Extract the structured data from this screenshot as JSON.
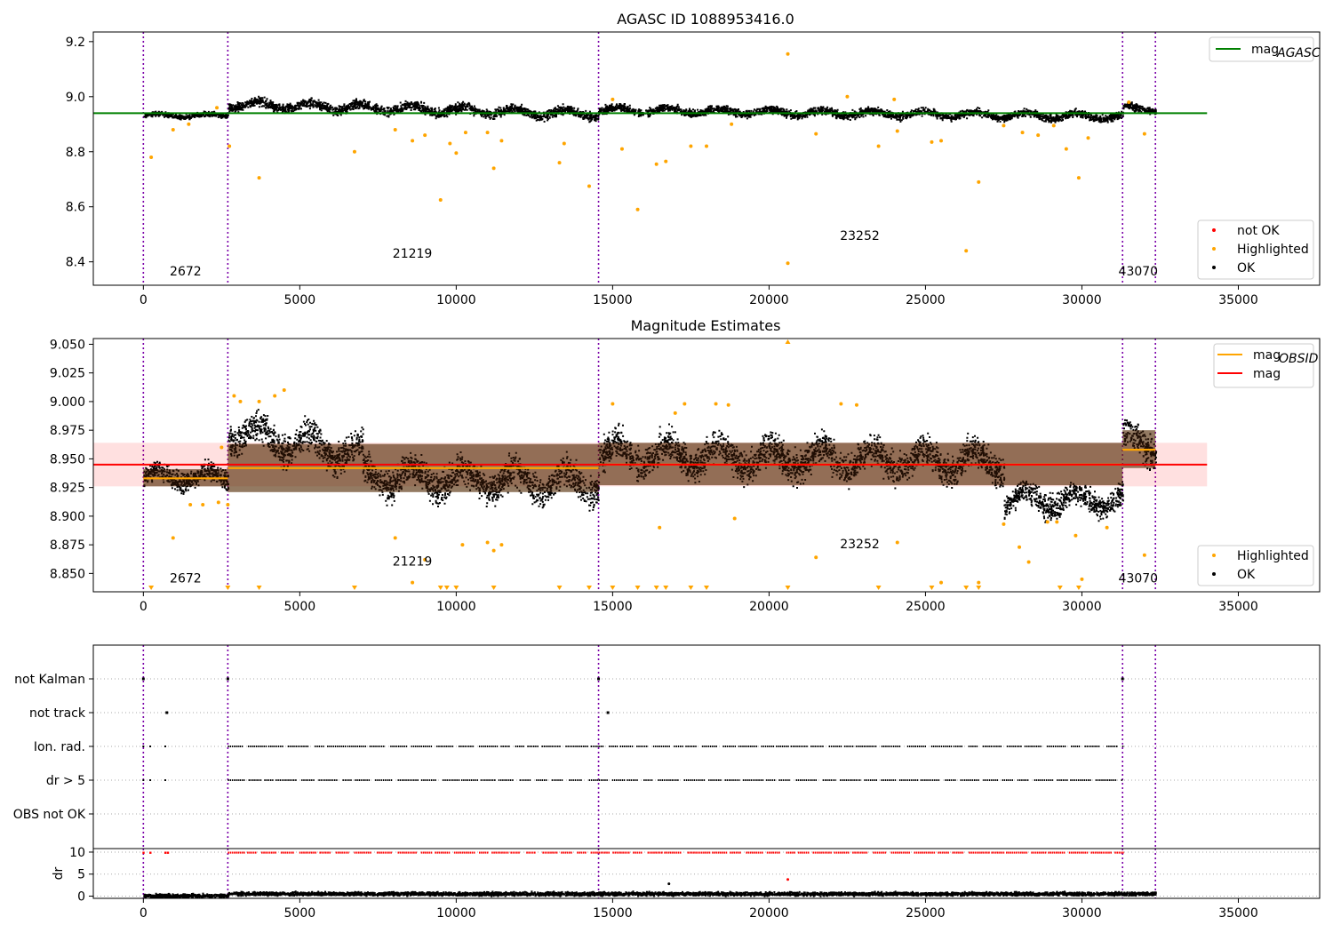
{
  "chart_data": [
    {
      "type": "scatter",
      "title": "AGASC ID 1088953416.0",
      "xlabel": "",
      "ylabel": "",
      "xlim": [
        -1600,
        37600
      ],
      "ylim": [
        8.315,
        9.235
      ],
      "x_ticks": [
        0,
        5000,
        10000,
        15000,
        20000,
        25000,
        30000,
        35000
      ],
      "x_tick_labels": [
        "0",
        "5000",
        "10000",
        "15000",
        "20000",
        "25000",
        "30000",
        "35000"
      ],
      "y_ticks": [
        8.4,
        8.6,
        8.8,
        9.0,
        9.2
      ],
      "y_tick_labels": [
        "8.4",
        "8.6",
        "8.8",
        "9.0",
        "9.2"
      ],
      "obsid_boundaries": [
        0,
        2700,
        14550,
        31300,
        32350
      ],
      "obsid_labels": [
        {
          "x": 1350,
          "y": 8.35,
          "text": "2672"
        },
        {
          "x": 8600,
          "y": 8.415,
          "text": "21219"
        },
        {
          "x": 22900,
          "y": 8.48,
          "text": "23252"
        },
        {
          "x": 31800,
          "y": 8.35,
          "text": "43070"
        }
      ],
      "lines": [
        {
          "name": "mag_AGASC",
          "color": "#008000",
          "x": [
            -1600,
            34000
          ],
          "y": [
            8.94,
            8.94
          ]
        }
      ],
      "series_bands": [
        {
          "name": "OK",
          "color": "#000000",
          "segments": [
            {
              "x0": 0,
              "x1": 2700,
              "center": 8.935,
              "spread": 0.012
            },
            {
              "x0": 2700,
              "x1": 14550,
              "center_start": 8.975,
              "center_end": 8.94,
              "spread": 0.025
            },
            {
              "x0": 14550,
              "x1": 31300,
              "center_start": 8.955,
              "center_end": 8.93,
              "spread": 0.02
            },
            {
              "x0": 31300,
              "x1": 32350,
              "center": 8.96,
              "spread": 0.02
            }
          ]
        }
      ],
      "highlighted_points": {
        "name": "Highlighted",
        "color": "#ffa500",
        "x": [
          250,
          950,
          1450,
          2350,
          2750,
          3700,
          6750,
          8050,
          8600,
          9000,
          9500,
          9800,
          10000,
          10300,
          11000,
          11200,
          11450,
          13300,
          13450,
          14250,
          15000,
          15300,
          15800,
          16400,
          16700,
          17500,
          18000,
          18800,
          20600,
          20600,
          21500,
          22500,
          23500,
          24100,
          25200,
          25500,
          26300,
          26700,
          27500,
          28100,
          28600,
          29100,
          29500,
          29900,
          30200,
          31500,
          32000,
          24000
        ],
        "y": [
          8.78,
          8.88,
          8.9,
          8.96,
          8.82,
          8.705,
          8.8,
          8.88,
          8.84,
          8.86,
          8.625,
          8.83,
          8.795,
          8.87,
          8.87,
          8.74,
          8.84,
          8.76,
          8.83,
          8.675,
          8.99,
          8.81,
          8.59,
          8.755,
          8.765,
          8.82,
          8.82,
          8.9,
          9.155,
          8.395,
          8.865,
          9.0,
          8.82,
          8.875,
          8.835,
          8.84,
          8.44,
          8.69,
          8.895,
          8.87,
          8.86,
          8.895,
          8.81,
          8.705,
          8.85,
          8.98,
          8.865,
          8.99
        ]
      },
      "legends": [
        {
          "placement": "top-right",
          "entries": [
            {
              "label": "mag",
              "sub": "AGASC",
              "marker": "line",
              "color": "#008000"
            }
          ]
        },
        {
          "placement": "lower-right",
          "entries": [
            {
              "label": "not OK",
              "marker": "dot",
              "color": "#ff0000"
            },
            {
              "label": "Highlighted",
              "marker": "dot",
              "color": "#ffa500"
            },
            {
              "label": "OK",
              "marker": "dot",
              "color": "#000000"
            }
          ]
        }
      ]
    },
    {
      "type": "scatter",
      "title": "Magnitude Estimates",
      "xlabel": "",
      "ylabel": "",
      "xlim": [
        -1600,
        37600
      ],
      "ylim": [
        8.834,
        9.055
      ],
      "x_ticks": [
        0,
        5000,
        10000,
        15000,
        20000,
        25000,
        30000,
        35000
      ],
      "x_tick_labels": [
        "0",
        "5000",
        "10000",
        "15000",
        "20000",
        "25000",
        "30000",
        "35000"
      ],
      "y_ticks": [
        8.85,
        8.875,
        8.9,
        8.925,
        8.95,
        8.975,
        9.0,
        9.025,
        9.05
      ],
      "y_tick_labels": [
        "8.850",
        "8.875",
        "8.900",
        "8.925",
        "8.950",
        "8.975",
        "9.000",
        "9.025",
        "9.050"
      ],
      "obsid_boundaries": [
        0,
        2700,
        14550,
        31300,
        32350
      ],
      "obsid_labels": [
        {
          "x": 1350,
          "y": 8.842,
          "text": "2672"
        },
        {
          "x": 8600,
          "y": 8.857,
          "text": "21219"
        },
        {
          "x": 22900,
          "y": 8.872,
          "text": "23252"
        },
        {
          "x": 31800,
          "y": 8.842,
          "text": "43070"
        }
      ],
      "mag_band": {
        "name": "mag",
        "color": "#ff0000",
        "y": 8.945,
        "band": [
          8.926,
          8.964
        ],
        "x": [
          -1600,
          34000
        ]
      },
      "obsid_segments": [
        {
          "x0": 0,
          "x1": 2700,
          "y": 8.933,
          "band": [
            8.926,
            8.941
          ]
        },
        {
          "x0": 2700,
          "x1": 14550,
          "y": 8.942,
          "band": [
            8.921,
            8.963
          ]
        },
        {
          "x0": 14550,
          "x1": 31300,
          "y": 8.945,
          "band": [
            8.927,
            8.964
          ]
        },
        {
          "x0": 31300,
          "x1": 32350,
          "y": 8.958,
          "band": [
            8.942,
            8.975
          ]
        }
      ],
      "series_bands": [
        {
          "name": "OK",
          "color": "#000000",
          "segments": [
            {
              "x0": 0,
              "x1": 2700,
              "center": 8.935,
              "spread": 0.012
            },
            {
              "x0": 2700,
              "x1": 7000,
              "center_start": 8.975,
              "center_end": 8.955,
              "spread": 0.02
            },
            {
              "x0": 7000,
              "x1": 14550,
              "center_start": 8.935,
              "center_end": 8.93,
              "spread": 0.02
            },
            {
              "x0": 14550,
              "x1": 27500,
              "center_start": 8.955,
              "center_end": 8.948,
              "spread": 0.02
            },
            {
              "x0": 27500,
              "x1": 31300,
              "center": 8.915,
              "spread": 0.015
            },
            {
              "x0": 31300,
              "x1": 32350,
              "center": 8.965,
              "spread": 0.02
            }
          ]
        }
      ],
      "highlighted_points": {
        "name": "Highlighted",
        "color": "#ffa500",
        "x": [
          2500,
          2700,
          2900,
          3100,
          3700,
          4200,
          4500,
          15000,
          17300,
          17000,
          18300,
          18700,
          22300,
          22800,
          950,
          1500,
          1900,
          2400,
          8050,
          8600,
          9000,
          10200,
          11000,
          11200,
          11450,
          16500,
          18900,
          21500,
          24100,
          25500,
          26700,
          27500,
          28000,
          28300,
          28900,
          29200,
          29800,
          30000,
          30800,
          32000
        ],
        "y": [
          8.96,
          8.91,
          9.005,
          9.0,
          9.0,
          9.005,
          9.01,
          8.998,
          8.998,
          8.99,
          8.998,
          8.997,
          8.998,
          8.997,
          8.881,
          8.91,
          8.91,
          8.912,
          8.881,
          8.842,
          8.862,
          8.875,
          8.877,
          8.87,
          8.875,
          8.89,
          8.898,
          8.864,
          8.877,
          8.842,
          8.842,
          8.893,
          8.873,
          8.86,
          8.895,
          8.895,
          8.883,
          8.845,
          8.89,
          8.866
        ]
      },
      "clipped_markers": {
        "color": "#ffa500",
        "x_low": [
          250,
          2700,
          3700,
          6750,
          9500,
          9700,
          10000,
          11200,
          13300,
          14250,
          15000,
          15800,
          16400,
          16700,
          17500,
          18000,
          20600,
          23500,
          25200,
          26300,
          26700,
          29300,
          29900
        ],
        "x_high": [
          20600
        ]
      },
      "legends": [
        {
          "placement": "top-right",
          "entries": [
            {
              "label": "mag",
              "sub": "OBSID",
              "marker": "line",
              "color": "#ffa500"
            },
            {
              "label": "mag",
              "marker": "line",
              "color": "#ff0000"
            }
          ]
        },
        {
          "placement": "lower-right",
          "entries": [
            {
              "label": "Highlighted",
              "marker": "dot",
              "color": "#ffa500"
            },
            {
              "label": "OK",
              "marker": "dot",
              "color": "#000000"
            }
          ]
        }
      ]
    },
    {
      "type": "scatter",
      "title": "",
      "xlabel": "",
      "ylabel": "",
      "xlim": [
        -1600,
        37600
      ],
      "categories": [
        "not Kalman",
        "not track",
        "Ion. rad.",
        "dr > 5",
        "OBS not OK"
      ],
      "obsid_boundaries": [
        0,
        2700,
        14550,
        31300,
        32350
      ],
      "flag_points": [
        {
          "category": "not Kalman",
          "x": [
            0,
            2700,
            14550,
            31300
          ]
        },
        {
          "category": "not track",
          "x": [
            750,
            14850
          ]
        },
        {
          "category": "Ion. rad.",
          "range": [
            2700,
            31300
          ],
          "extra_x": [
            0,
            220,
            700
          ]
        },
        {
          "category": "dr > 5",
          "range": [
            2700,
            31300
          ],
          "extra_x": [
            0,
            220,
            700
          ]
        },
        {
          "category": "OBS not OK",
          "x": []
        }
      ],
      "color": "#000000"
    },
    {
      "type": "scatter",
      "title": "",
      "xlabel": "",
      "ylabel": "dr",
      "xlim": [
        -1600,
        37600
      ],
      "ylim": [
        -0.5,
        10.8
      ],
      "x_ticks": [
        0,
        5000,
        10000,
        15000,
        20000,
        25000,
        30000,
        35000
      ],
      "x_tick_labels": [
        "0",
        "5000",
        "10000",
        "15000",
        "20000",
        "25000",
        "30000",
        "35000"
      ],
      "y_ticks": [
        0,
        5,
        10
      ],
      "y_tick_labels": [
        "0",
        "5",
        "10"
      ],
      "obsid_boundaries": [
        0,
        2700,
        14550,
        31300,
        32350
      ],
      "series": [
        {
          "name": "OK",
          "color": "#000000",
          "range": [
            0,
            32350
          ],
          "center": 0.7,
          "spread": 0.6
        },
        {
          "name": "not OK",
          "color": "#ff0000",
          "range": [
            2700,
            31300
          ],
          "y": 9.9
        }
      ],
      "outliers": [
        {
          "x": 16800,
          "y": 2.8,
          "color": "#000000"
        },
        {
          "x": 20600,
          "y": 3.8,
          "color": "#ff0000"
        }
      ]
    }
  ]
}
